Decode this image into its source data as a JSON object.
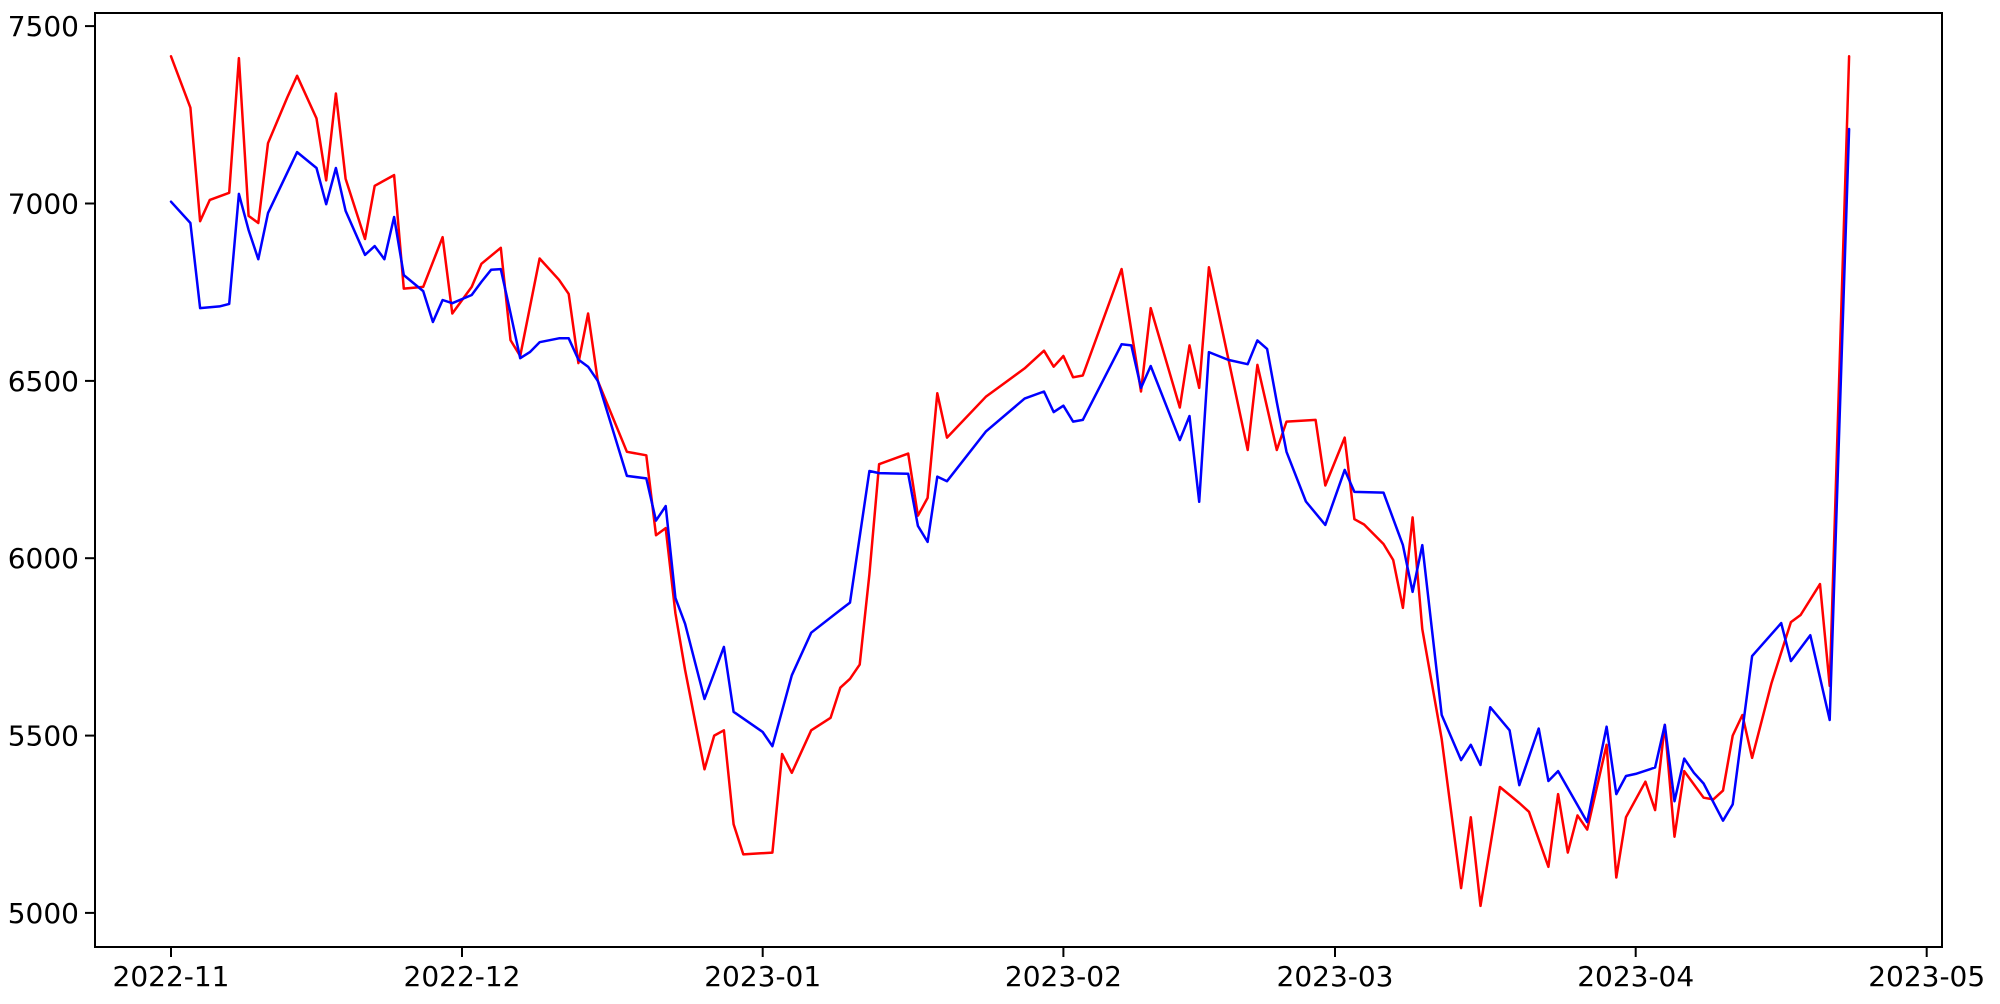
{
  "figure": {
    "background": "#ffffff",
    "frame_color": "#000000"
  },
  "chart_data": {
    "type": "line",
    "title": "",
    "xlabel": "",
    "ylabel": "",
    "grid": false,
    "legend": "none",
    "x_axis": {
      "tick_labels": [
        "2022-11",
        "2022-12",
        "2023-01",
        "2023-02",
        "2023-03",
        "2023-04",
        "2023-05"
      ],
      "tick_dates": [
        "2022-11-01",
        "2022-12-01",
        "2023-01-01",
        "2023-02-01",
        "2023-03-01",
        "2023-04-01",
        "2023-05-01"
      ],
      "xlim_days_from_first_tick": [
        -7.84,
        182.58
      ]
    },
    "y_axis": {
      "ticks": [
        5000,
        5500,
        6000,
        6500,
        7000,
        7500
      ],
      "ylim": [
        4904,
        7537
      ]
    },
    "series": [
      {
        "name": "series-red",
        "color": "#ff0000",
        "points": [
          [
            "2022-11-01",
            7415
          ],
          [
            "2022-11-03",
            7270
          ],
          [
            "2022-11-04",
            6950
          ],
          [
            "2022-11-05",
            7010
          ],
          [
            "2022-11-07",
            7030
          ],
          [
            "2022-11-08",
            7410
          ],
          [
            "2022-11-09",
            6965
          ],
          [
            "2022-11-10",
            6945
          ],
          [
            "2022-11-11",
            7170
          ],
          [
            "2022-11-13",
            7300
          ],
          [
            "2022-11-14",
            7360
          ],
          [
            "2022-11-16",
            7240
          ],
          [
            "2022-11-17",
            7065
          ],
          [
            "2022-11-18",
            7310
          ],
          [
            "2022-11-19",
            7070
          ],
          [
            "2022-11-21",
            6900
          ],
          [
            "2022-11-22",
            7050
          ],
          [
            "2022-11-24",
            7080
          ],
          [
            "2022-11-25",
            6760
          ],
          [
            "2022-11-27",
            6765
          ],
          [
            "2022-11-29",
            6905
          ],
          [
            "2022-11-30",
            6690
          ],
          [
            "2022-12-02",
            6765
          ],
          [
            "2022-12-03",
            6830
          ],
          [
            "2022-12-05",
            6875
          ],
          [
            "2022-12-06",
            6615
          ],
          [
            "2022-12-07",
            6570
          ],
          [
            "2022-12-09",
            6845
          ],
          [
            "2022-12-11",
            6785
          ],
          [
            "2022-12-12",
            6745
          ],
          [
            "2022-12-13",
            6550
          ],
          [
            "2022-12-14",
            6690
          ],
          [
            "2022-12-15",
            6500
          ],
          [
            "2022-12-18",
            6300
          ],
          [
            "2022-12-20",
            6290
          ],
          [
            "2022-12-21",
            6065
          ],
          [
            "2022-12-22",
            6085
          ],
          [
            "2022-12-23",
            5845
          ],
          [
            "2022-12-24",
            5685
          ],
          [
            "2022-12-26",
            5405
          ],
          [
            "2022-12-27",
            5500
          ],
          [
            "2022-12-28",
            5515
          ],
          [
            "2022-12-29",
            5250
          ],
          [
            "2022-12-30",
            5165
          ],
          [
            "2023-01-02",
            5170
          ],
          [
            "2023-01-03",
            5448
          ],
          [
            "2023-01-04",
            5395
          ],
          [
            "2023-01-06",
            5515
          ],
          [
            "2023-01-08",
            5550
          ],
          [
            "2023-01-09",
            5635
          ],
          [
            "2023-01-10",
            5660
          ],
          [
            "2023-01-11",
            5700
          ],
          [
            "2023-01-12",
            5955
          ],
          [
            "2023-01-13",
            6265
          ],
          [
            "2023-01-16",
            6295
          ],
          [
            "2023-01-17",
            6120
          ],
          [
            "2023-01-18",
            6170
          ],
          [
            "2023-01-19",
            6465
          ],
          [
            "2023-01-20",
            6340
          ],
          [
            "2023-01-24",
            6455
          ],
          [
            "2023-01-28",
            6535
          ],
          [
            "2023-01-30",
            6585
          ],
          [
            "2023-01-31",
            6540
          ],
          [
            "2023-02-01",
            6570
          ],
          [
            "2023-02-02",
            6510
          ],
          [
            "2023-02-03",
            6515
          ],
          [
            "2023-02-07",
            6815
          ],
          [
            "2023-02-09",
            6470
          ],
          [
            "2023-02-10",
            6705
          ],
          [
            "2023-02-13",
            6425
          ],
          [
            "2023-02-14",
            6600
          ],
          [
            "2023-02-15",
            6480
          ],
          [
            "2023-02-16",
            6820
          ],
          [
            "2023-02-20",
            6305
          ],
          [
            "2023-02-21",
            6545
          ],
          [
            "2023-02-23",
            6305
          ],
          [
            "2023-02-24",
            6385
          ],
          [
            "2023-02-27",
            6390
          ],
          [
            "2023-02-28",
            6205
          ],
          [
            "2023-03-02",
            6340
          ],
          [
            "2023-03-03",
            6110
          ],
          [
            "2023-03-04",
            6095
          ],
          [
            "2023-03-06",
            6040
          ],
          [
            "2023-03-07",
            5995
          ],
          [
            "2023-03-08",
            5860
          ],
          [
            "2023-03-09",
            6115
          ],
          [
            "2023-03-10",
            5800
          ],
          [
            "2023-03-12",
            5490
          ],
          [
            "2023-03-14",
            5070
          ],
          [
            "2023-03-15",
            5270
          ],
          [
            "2023-03-16",
            5020
          ],
          [
            "2023-03-18",
            5355
          ],
          [
            "2023-03-20",
            5310
          ],
          [
            "2023-03-21",
            5285
          ],
          [
            "2023-03-23",
            5130
          ],
          [
            "2023-03-24",
            5335
          ],
          [
            "2023-03-25",
            5170
          ],
          [
            "2023-03-26",
            5275
          ],
          [
            "2023-03-27",
            5235
          ],
          [
            "2023-03-29",
            5474
          ],
          [
            "2023-03-30",
            5100
          ],
          [
            "2023-03-31",
            5270
          ],
          [
            "2023-04-02",
            5370
          ],
          [
            "2023-04-03",
            5290
          ],
          [
            "2023-04-04",
            5530
          ],
          [
            "2023-04-05",
            5215
          ],
          [
            "2023-04-06",
            5400
          ],
          [
            "2023-04-08",
            5325
          ],
          [
            "2023-04-09",
            5320
          ],
          [
            "2023-04-10",
            5345
          ],
          [
            "2023-04-11",
            5500
          ],
          [
            "2023-04-12",
            5558
          ],
          [
            "2023-04-13",
            5437
          ],
          [
            "2023-04-15",
            5648
          ],
          [
            "2023-04-17",
            5820
          ],
          [
            "2023-04-18",
            5840
          ],
          [
            "2023-04-20",
            5927
          ],
          [
            "2023-04-21",
            5640
          ],
          [
            "2023-04-23",
            7415
          ]
        ]
      },
      {
        "name": "series-blue",
        "color": "#0000ff",
        "points": [
          [
            "2022-11-01",
            7005
          ],
          [
            "2022-11-03",
            6945
          ],
          [
            "2022-11-04",
            6705
          ],
          [
            "2022-11-06",
            6710
          ],
          [
            "2022-11-07",
            6717
          ],
          [
            "2022-11-08",
            7027
          ],
          [
            "2022-11-09",
            6925
          ],
          [
            "2022-11-10",
            6843
          ],
          [
            "2022-11-11",
            6973
          ],
          [
            "2022-11-14",
            7145
          ],
          [
            "2022-11-16",
            7100
          ],
          [
            "2022-11-17",
            6998
          ],
          [
            "2022-11-18",
            7100
          ],
          [
            "2022-11-19",
            6979
          ],
          [
            "2022-11-21",
            6855
          ],
          [
            "2022-11-22",
            6880
          ],
          [
            "2022-11-23",
            6843
          ],
          [
            "2022-11-24",
            6962
          ],
          [
            "2022-11-25",
            6798
          ],
          [
            "2022-11-27",
            6753
          ],
          [
            "2022-11-28",
            6666
          ],
          [
            "2022-11-29",
            6728
          ],
          [
            "2022-11-30",
            6719
          ],
          [
            "2022-12-02",
            6742
          ],
          [
            "2022-12-03",
            6779
          ],
          [
            "2022-12-04",
            6813
          ],
          [
            "2022-12-05",
            6815
          ],
          [
            "2022-12-06",
            6691
          ],
          [
            "2022-12-07",
            6564
          ],
          [
            "2022-12-08",
            6581
          ],
          [
            "2022-12-09",
            6609
          ],
          [
            "2022-12-11",
            6620
          ],
          [
            "2022-12-12",
            6620
          ],
          [
            "2022-12-13",
            6560
          ],
          [
            "2022-12-14",
            6540
          ],
          [
            "2022-12-15",
            6500
          ],
          [
            "2022-12-18",
            6232
          ],
          [
            "2022-12-20",
            6225
          ],
          [
            "2022-12-21",
            6106
          ],
          [
            "2022-12-22",
            6147
          ],
          [
            "2022-12-23",
            5888
          ],
          [
            "2022-12-24",
            5815
          ],
          [
            "2022-12-26",
            5603
          ],
          [
            "2022-12-28",
            5750
          ],
          [
            "2022-12-29",
            5567
          ],
          [
            "2023-01-01",
            5510
          ],
          [
            "2023-01-02",
            5470
          ],
          [
            "2023-01-04",
            5670
          ],
          [
            "2023-01-06",
            5790
          ],
          [
            "2023-01-09",
            5854
          ],
          [
            "2023-01-10",
            5875
          ],
          [
            "2023-01-12",
            6246
          ],
          [
            "2023-01-13",
            6240
          ],
          [
            "2023-01-16",
            6238
          ],
          [
            "2023-01-17",
            6091
          ],
          [
            "2023-01-18",
            6046
          ],
          [
            "2023-01-19",
            6230
          ],
          [
            "2023-01-20",
            6217
          ],
          [
            "2023-01-24",
            6357
          ],
          [
            "2023-01-28",
            6450
          ],
          [
            "2023-01-30",
            6470
          ],
          [
            "2023-01-31",
            6412
          ],
          [
            "2023-02-01",
            6430
          ],
          [
            "2023-02-02",
            6385
          ],
          [
            "2023-02-03",
            6390
          ],
          [
            "2023-02-07",
            6603
          ],
          [
            "2023-02-08",
            6600
          ],
          [
            "2023-02-09",
            6480
          ],
          [
            "2023-02-10",
            6542
          ],
          [
            "2023-02-13",
            6333
          ],
          [
            "2023-02-14",
            6401
          ],
          [
            "2023-02-15",
            6159
          ],
          [
            "2023-02-16",
            6581
          ],
          [
            "2023-02-18",
            6559
          ],
          [
            "2023-02-20",
            6547
          ],
          [
            "2023-02-21",
            6614
          ],
          [
            "2023-02-22",
            6590
          ],
          [
            "2023-02-23",
            6440
          ],
          [
            "2023-02-24",
            6300
          ],
          [
            "2023-02-26",
            6160
          ],
          [
            "2023-02-28",
            6094
          ],
          [
            "2023-03-02",
            6249
          ],
          [
            "2023-03-03",
            6187
          ],
          [
            "2023-03-06",
            6185
          ],
          [
            "2023-03-08",
            6037
          ],
          [
            "2023-03-09",
            5905
          ],
          [
            "2023-03-10",
            6037
          ],
          [
            "2023-03-12",
            5558
          ],
          [
            "2023-03-14",
            5431
          ],
          [
            "2023-03-15",
            5474
          ],
          [
            "2023-03-16",
            5417
          ],
          [
            "2023-03-17",
            5580
          ],
          [
            "2023-03-19",
            5515
          ],
          [
            "2023-03-20",
            5360
          ],
          [
            "2023-03-22",
            5520
          ],
          [
            "2023-03-23",
            5372
          ],
          [
            "2023-03-24",
            5400
          ],
          [
            "2023-03-27",
            5256
          ],
          [
            "2023-03-29",
            5525
          ],
          [
            "2023-03-30",
            5335
          ],
          [
            "2023-03-31",
            5386
          ],
          [
            "2023-04-01",
            5392
          ],
          [
            "2023-04-03",
            5410
          ],
          [
            "2023-04-04",
            5530
          ],
          [
            "2023-04-05",
            5315
          ],
          [
            "2023-04-06",
            5435
          ],
          [
            "2023-04-07",
            5395
          ],
          [
            "2023-04-08",
            5365
          ],
          [
            "2023-04-10",
            5260
          ],
          [
            "2023-04-11",
            5306
          ],
          [
            "2023-04-13",
            5724
          ],
          [
            "2023-04-16",
            5817
          ],
          [
            "2023-04-17",
            5710
          ],
          [
            "2023-04-19",
            5783
          ],
          [
            "2023-04-21",
            5544
          ],
          [
            "2023-04-23",
            7210
          ]
        ]
      }
    ]
  }
}
